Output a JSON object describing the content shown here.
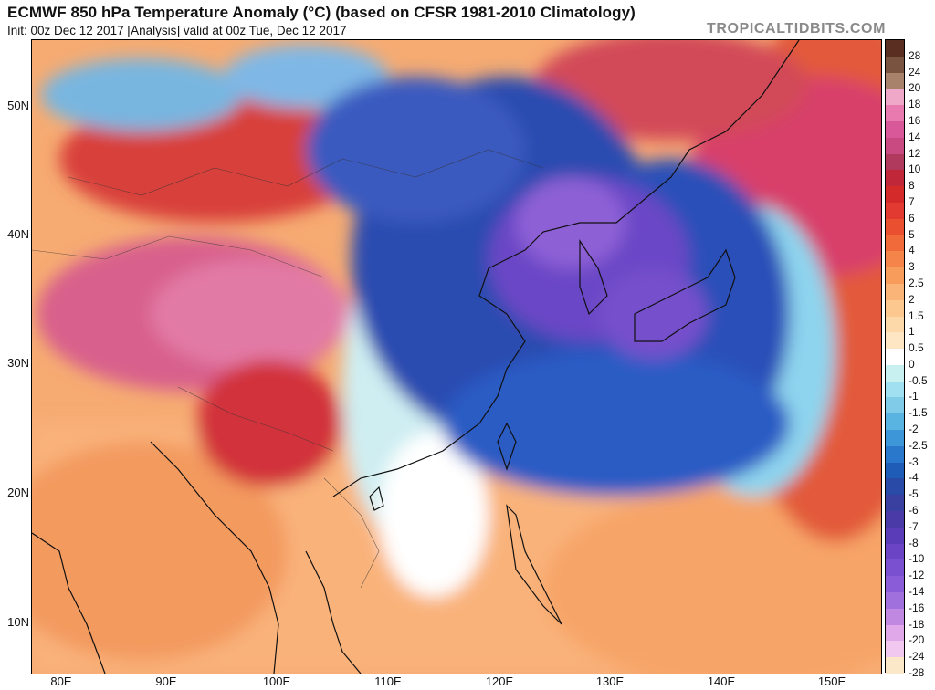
{
  "header": {
    "title": "ECMWF 850 hPa Temperature Anomaly (°C) (based on CFSR 1981-2010 Climatology)",
    "subtitle": "Init: 00z Dec 12 2017   [Analysis]   valid at 00z Tue, Dec 12 2017",
    "brand": "TROPICALTIDBITS.COM"
  },
  "map": {
    "lat_labels": [
      "50N",
      "40N",
      "30N",
      "20N",
      "10N"
    ],
    "lon_labels": [
      "80E",
      "90E",
      "100E",
      "110E",
      "120E",
      "130E",
      "140E",
      "150E"
    ]
  },
  "colorbar": {
    "labels": [
      "28",
      "24",
      "20",
      "18",
      "16",
      "14",
      "12",
      "10",
      "8",
      "7",
      "6",
      "5",
      "4",
      "3",
      "2.5",
      "2",
      "1.5",
      "1",
      "0.5",
      "0",
      "-0.5",
      "-1",
      "-1.5",
      "-2",
      "-2.5",
      "-3",
      "-4",
      "-5",
      "-6",
      "-7",
      "-8",
      "-10",
      "-12",
      "-14",
      "-16",
      "-18",
      "-20",
      "-24",
      "-28"
    ],
    "colors": [
      "#5a2f22",
      "#7a5240",
      "#a8826b",
      "#f0a8c8",
      "#e87ab0",
      "#d8589a",
      "#c84a80",
      "#b03a5e",
      "#c0283a",
      "#d42a2a",
      "#e23a30",
      "#ea5030",
      "#f06a3a",
      "#f4844a",
      "#f89c5c",
      "#fab478",
      "#fcc890",
      "#fdd8a8",
      "#fee6c4",
      "#ffffff",
      "#c8f0f0",
      "#a0e0f0",
      "#80cce8",
      "#5ab4e2",
      "#3c96d8",
      "#2a78cc",
      "#1e5cb8",
      "#2a4aa8",
      "#3a40a0",
      "#4a3aa8",
      "#5a3cb8",
      "#6a44c4",
      "#7a50d0",
      "#8a5cd8",
      "#a070dc",
      "#c088e0",
      "#e0a8e8",
      "#f0c8f0",
      "#fbe8c8"
    ]
  }
}
